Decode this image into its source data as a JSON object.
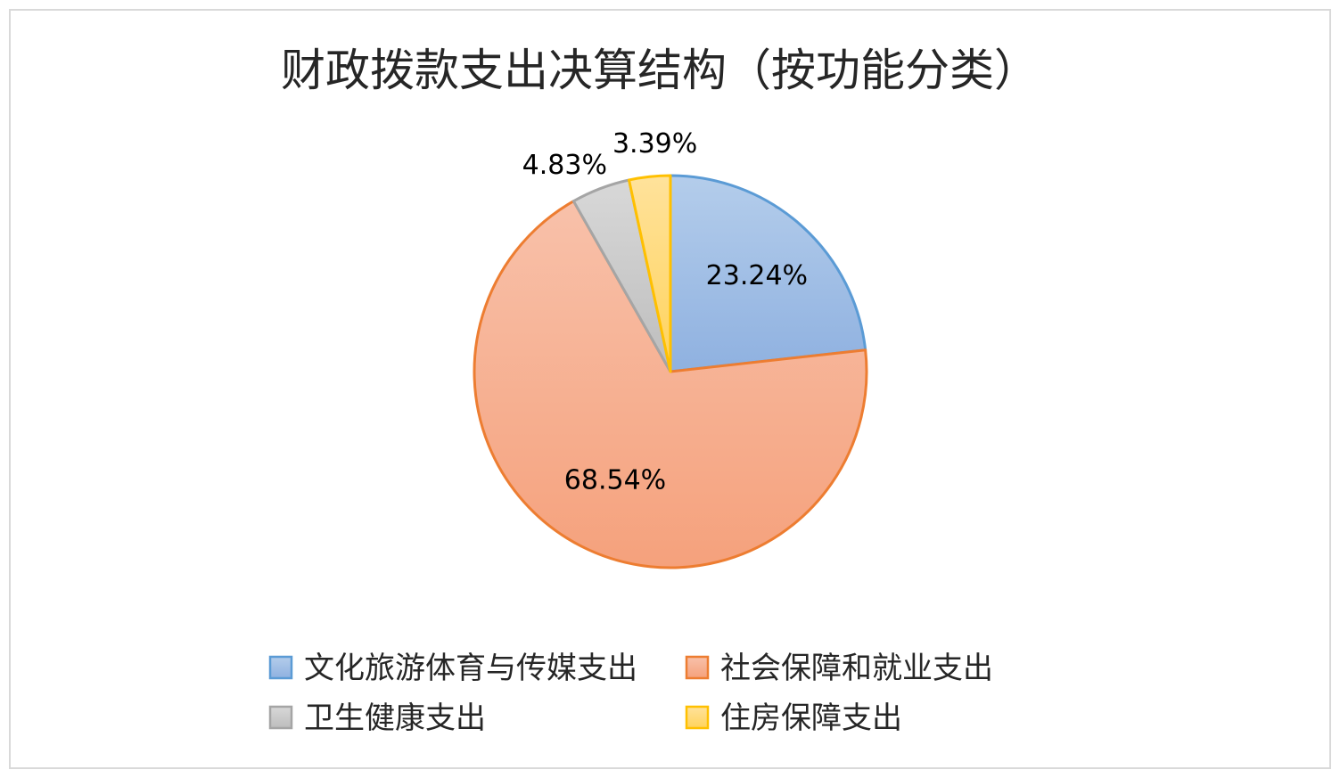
{
  "chart_data": {
    "type": "pie",
    "title": "财政拨款支出决算结构（按功能分类）",
    "categories": [
      "文化旅游体育与传媒支出",
      "社会保障和就业支出",
      "卫生健康支出",
      "住房保障支出"
    ],
    "values": [
      23.24,
      68.54,
      4.83,
      3.39
    ],
    "data_labels": [
      "23.24%",
      "68.54%",
      "4.83%",
      "3.39%"
    ],
    "value_unit": "%",
    "start_angle": "12 o'clock",
    "direction": "clockwise",
    "legend_position": "bottom",
    "colors": {
      "fill_light": [
        "#b4cdeb",
        "#f8c1aa",
        "#d8d8d8",
        "#ffe29b"
      ],
      "fill_dark": [
        "#8fb1e0",
        "#f5a17c",
        "#bdbdbd",
        "#ffd35c"
      ],
      "stroke": [
        "#5b9bd5",
        "#ed7d31",
        "#a5a5a5",
        "#ffc000"
      ]
    }
  }
}
